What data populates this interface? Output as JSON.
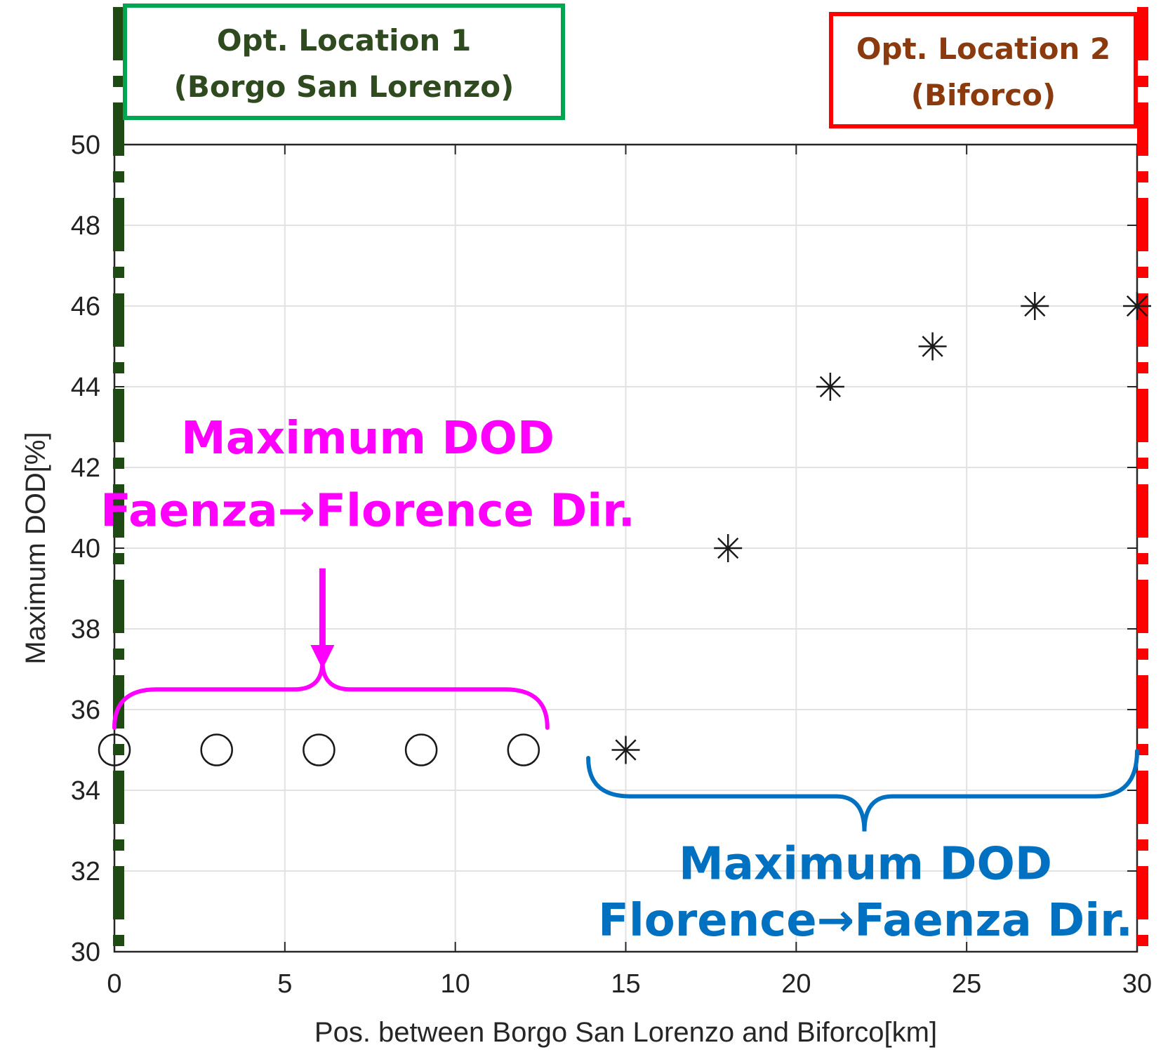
{
  "chart_data": {
    "type": "scatter",
    "title": "",
    "xlabel": "Pos. between Borgo San Lorenzo and Biforco[km]",
    "ylabel": "Maximum DOD[%]",
    "xlim": [
      0,
      30
    ],
    "ylim": [
      30,
      50
    ],
    "xticks": [
      "0",
      "5",
      "10",
      "15",
      "20",
      "25",
      "30"
    ],
    "yticks": [
      "30",
      "32",
      "34",
      "36",
      "38",
      "40",
      "42",
      "44",
      "46",
      "48",
      "50"
    ],
    "grid": true,
    "series": [
      {
        "marker": "circle",
        "x": [
          0,
          3,
          6,
          9,
          12
        ],
        "y": [
          35,
          35,
          35,
          35,
          35
        ]
      },
      {
        "marker": "asterisk",
        "x": [
          15,
          18,
          21,
          24,
          27,
          30
        ],
        "y": [
          35,
          40,
          44,
          45,
          46,
          46
        ]
      }
    ],
    "location_boxes": [
      {
        "line1": "Opt. Location 1",
        "line2": "(Borgo San Lorenzo)",
        "color": "#2e4a1e",
        "border": "#00a550",
        "x": 0
      },
      {
        "line1": "Opt. Location 2",
        "line2": "(Biforco)",
        "color": "#8b3a0e",
        "border": "#ff0000",
        "x": 30
      }
    ],
    "annotations": [
      {
        "line1": "Maximum DOD",
        "line2": "Faenza→Florence Dir.",
        "color": "#ff00ff",
        "x_from": 0,
        "x_to": 12.7
      },
      {
        "line1": "Maximum DOD",
        "line2": "Florence→Faenza Dir.",
        "color": "#0070c0",
        "x_from": 13.9,
        "x_to": 30
      }
    ],
    "location_line_colors": {
      "loc1": "#1f4a14",
      "loc2": "#ff0000"
    }
  }
}
